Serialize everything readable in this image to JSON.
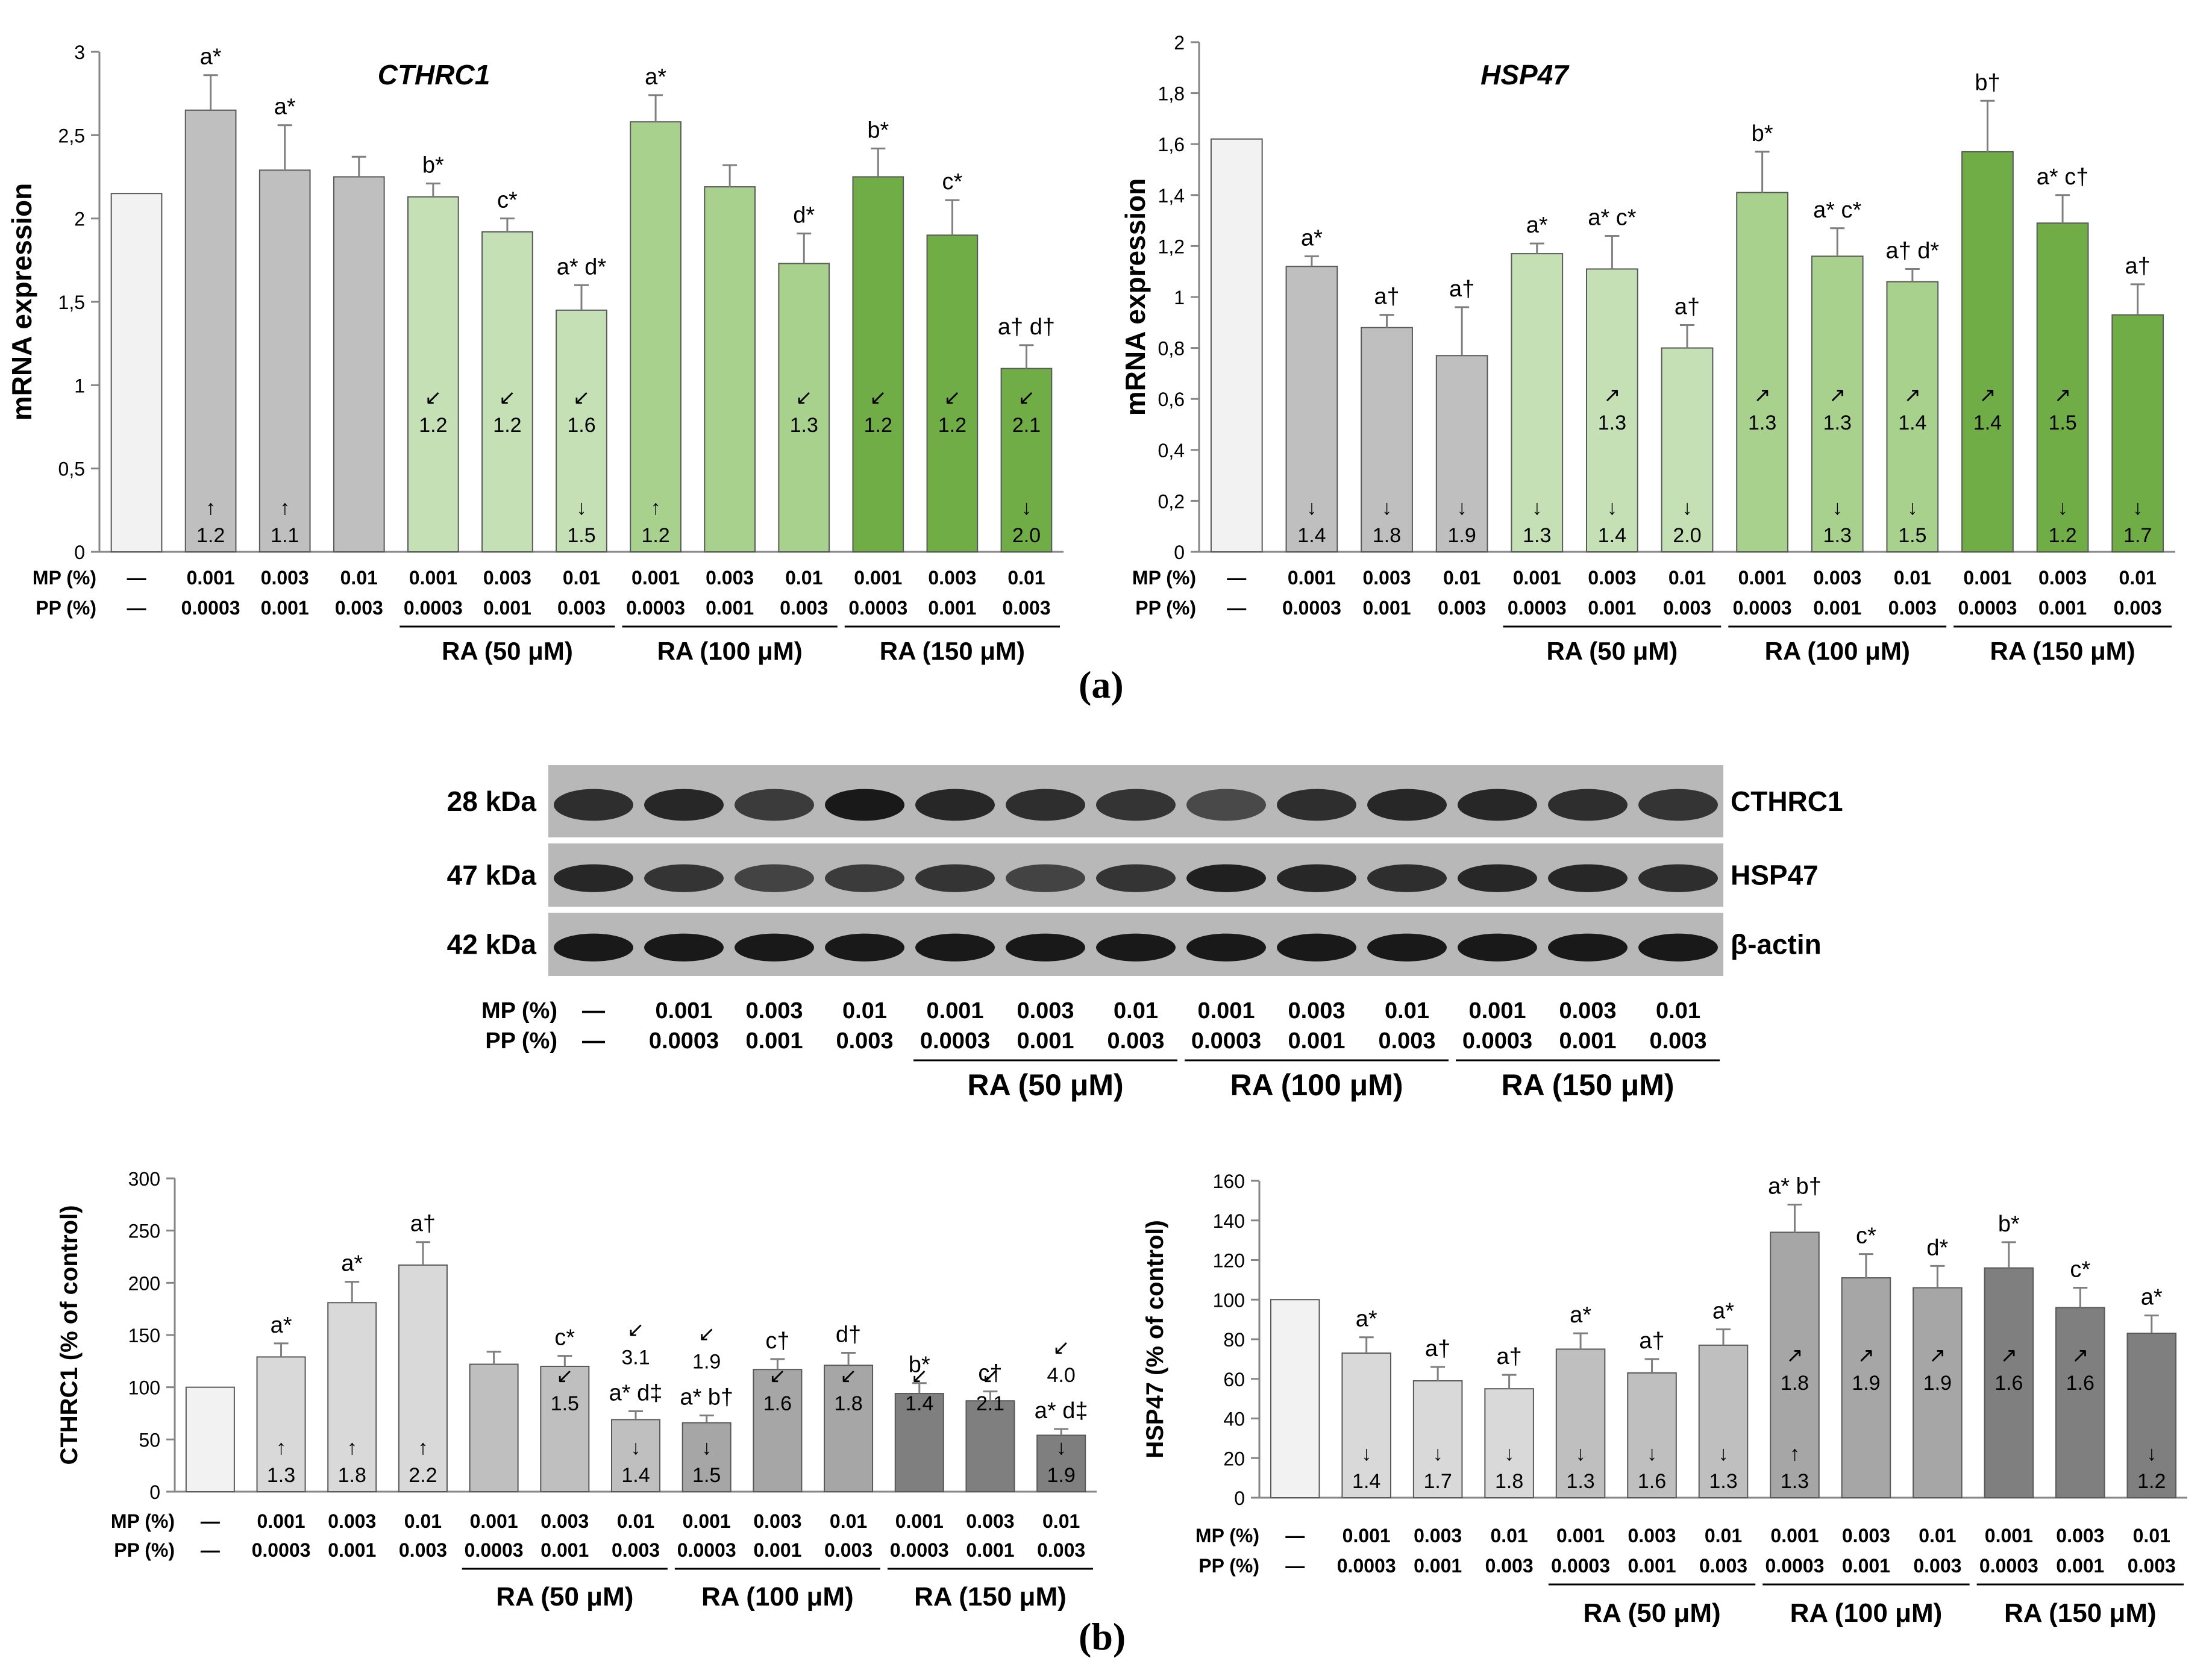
{
  "panel_labels": {
    "a": "(a)",
    "b": "(b)"
  },
  "conditions": {
    "mp_label": "MP (%)",
    "pp_label": "PP (%)",
    "mp": [
      "—",
      "0.001",
      "0.003",
      "0.01",
      "0.001",
      "0.003",
      "0.01",
      "0.001",
      "0.003",
      "0.01",
      "0.001",
      "0.003",
      "0.01"
    ],
    "pp": [
      "—",
      "0.0003",
      "0.001",
      "0.003",
      "0.0003",
      "0.001",
      "0.003",
      "0.0003",
      "0.001",
      "0.003",
      "0.0003",
      "0.001",
      "0.003"
    ],
    "groups": [
      "RA (50 μM)",
      "RA (100 μM)",
      "RA (150 μM)"
    ]
  },
  "western_blot": {
    "bands": [
      {
        "size": "28 kDa",
        "protein": "CTHRC1"
      },
      {
        "size": "47 kDa",
        "protein": "HSP47"
      },
      {
        "size": "42 kDa",
        "protein": "β-actin"
      }
    ]
  },
  "colors": {
    "control": "#f2f2f2",
    "mp_pp": "#bfbfbf",
    "ra50": "#c5e0b4",
    "ra100": "#a9d18e",
    "ra150": "#70ad47",
    "wb_mp_pp": "#d9d9d9",
    "wb_ra50": "#bfbfbf",
    "wb_ra100": "#a6a6a6",
    "wb_ra150": "#7f7f7f"
  },
  "chart_data": [
    {
      "type": "bar",
      "title": "CTHRC1",
      "ylabel": "mRNA expression",
      "ylim": [
        0,
        3
      ],
      "yticks": [
        "0",
        "0,5",
        "1",
        "1,5",
        "2",
        "2,5",
        "3"
      ],
      "values": [
        2.15,
        2.65,
        2.29,
        2.25,
        2.13,
        1.92,
        1.45,
        2.58,
        2.19,
        1.73,
        2.25,
        1.9,
        1.1
      ],
      "errors": [
        0,
        0.21,
        0.27,
        0.12,
        0.08,
        0.08,
        0.15,
        0.16,
        0.13,
        0.18,
        0.17,
        0.21,
        0.14
      ],
      "letters": [
        "",
        "a*",
        "a*",
        "",
        "b*",
        "c*",
        "a* d*",
        "a*",
        "",
        "d*",
        "b*",
        "c*",
        "a† d†"
      ],
      "fold_upper": [
        null,
        null,
        null,
        null,
        "↙|1.2",
        "↙|1.2",
        "↙|1.6",
        null,
        null,
        "↙|1.3",
        "↙|1.2",
        "↙|1.2",
        "↙|2.1"
      ],
      "fold_lower": [
        null,
        "↑|1.2",
        "↑|1.1",
        null,
        null,
        null,
        "↓|1.5",
        "↑|1.2",
        null,
        null,
        null,
        null,
        "↓|2.0"
      ]
    },
    {
      "type": "bar",
      "title": "HSP47",
      "ylabel": "mRNA expression",
      "ylim": [
        0,
        2
      ],
      "yticks": [
        "0",
        "0,2",
        "0,4",
        "0,6",
        "0,8",
        "1",
        "1,2",
        "1,4",
        "1,6",
        "1,8",
        "2"
      ],
      "values": [
        1.62,
        1.12,
        0.88,
        0.77,
        1.17,
        1.11,
        0.8,
        1.41,
        1.16,
        1.06,
        1.57,
        1.29,
        0.93
      ],
      "errors": [
        0,
        0.04,
        0.05,
        0.19,
        0.04,
        0.13,
        0.09,
        0.16,
        0.11,
        0.05,
        0.2,
        0.11,
        0.12
      ],
      "letters": [
        "",
        "a*",
        "a†",
        "a†",
        "a*",
        "a* c*",
        "a†",
        "b*",
        "a* c*",
        "a† d*",
        "b†",
        "a* c†",
        "a†"
      ],
      "fold_upper": [
        null,
        null,
        null,
        null,
        null,
        "↗|1.3",
        null,
        "↗|1.3",
        "↗|1.3",
        "↗|1.4",
        "↗|1.4",
        "↗|1.5",
        null
      ],
      "fold_lower": [
        null,
        "↓|1.4",
        "↓|1.8",
        "↓|1.9",
        "↓|1.3",
        "↓|1.4",
        "↓|2.0",
        null,
        "↓|1.3",
        "↓|1.5",
        null,
        "↓|1.2",
        "↓|1.7"
      ]
    },
    {
      "type": "bar",
      "title": "",
      "ylabel": "CTHRC1 (% of control)",
      "ylim": [
        0,
        300
      ],
      "yticks": [
        "0",
        "50",
        "100",
        "150",
        "200",
        "250",
        "300"
      ],
      "values": [
        100,
        129,
        181,
        217,
        122,
        120,
        69,
        66,
        117,
        121,
        94,
        87,
        54
      ],
      "errors": [
        0,
        13,
        20,
        22,
        12,
        10,
        8,
        7,
        10,
        12,
        10,
        9,
        6
      ],
      "letters": [
        "",
        "a*",
        "a*",
        "a†",
        "",
        "c*",
        "a* d‡",
        "a* b†",
        "c†",
        "d†",
        "b*",
        "c†",
        "a* d‡"
      ],
      "fold_above": [
        null,
        null,
        null,
        null,
        null,
        null,
        "↙|3.1",
        "↙|1.9",
        null,
        null,
        null,
        null,
        "↙|4.0"
      ],
      "fold_upper": [
        null,
        null,
        null,
        null,
        null,
        "↙|1.5",
        null,
        null,
        "↙|1.6",
        "↙|1.8",
        "↙|1.4",
        "↙|2.1",
        null
      ],
      "fold_lower": [
        null,
        "↑|1.3",
        "↑|1.8",
        "↑|2.2",
        null,
        null,
        "↓|1.4",
        "↓|1.5",
        null,
        null,
        null,
        null,
        "↓|1.9"
      ]
    },
    {
      "type": "bar",
      "title": "",
      "ylabel": "HSP47 (% of control)",
      "ylim": [
        0,
        160
      ],
      "yticks": [
        "0",
        "20",
        "40",
        "60",
        "80",
        "100",
        "120",
        "140",
        "160"
      ],
      "values": [
        100,
        73,
        59,
        55,
        75,
        63,
        77,
        134,
        111,
        106,
        116,
        96,
        83
      ],
      "errors": [
        0,
        8,
        7,
        7,
        8,
        7,
        8,
        14,
        12,
        11,
        13,
        10,
        9
      ],
      "letters": [
        "",
        "a*",
        "a†",
        "a†",
        "a*",
        "a†",
        "a*",
        "a* b†",
        "c*",
        "d*",
        "b*",
        "c*",
        "a*"
      ],
      "fold_upper": [
        null,
        null,
        null,
        null,
        null,
        null,
        null,
        "↗|1.8",
        "↗|1.9",
        "↗|1.9",
        "↗|1.6",
        "↗|1.6",
        null
      ],
      "fold_lower": [
        null,
        "↓|1.4",
        "↓|1.7",
        "↓|1.8",
        "↓|1.3",
        "↓|1.6",
        "↓|1.3",
        "↑|1.3",
        null,
        null,
        null,
        null,
        "↓|1.2"
      ]
    }
  ]
}
